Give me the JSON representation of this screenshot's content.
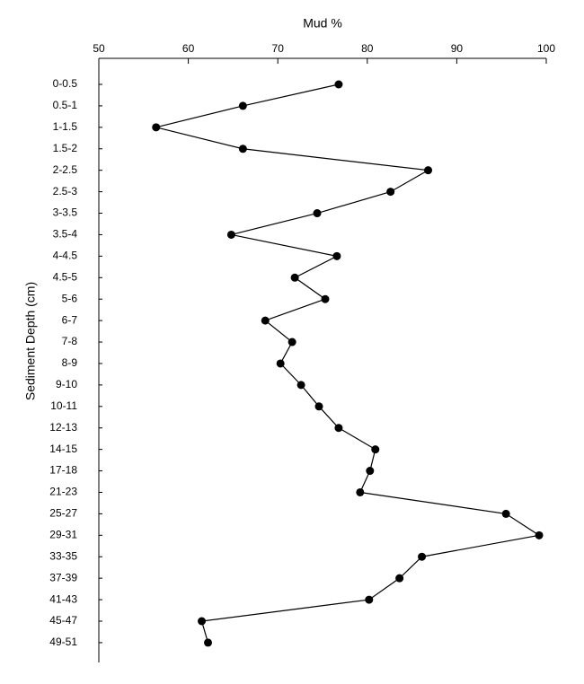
{
  "chart_data": {
    "type": "line",
    "x_label": "Mud %",
    "y_label": "Sediment Depth (cm)",
    "categories": [
      "0-0.5",
      "0.5-1",
      "1-1.5",
      "1.5-2",
      "2-2.5",
      "2.5-3",
      "3-3.5",
      "3.5-4",
      "4-4.5",
      "4.5-5",
      "5-6",
      "6-7",
      "7-8",
      "8-9",
      "9-10",
      "10-11",
      "12-13",
      "14-15",
      "17-18",
      "21-23",
      "25-27",
      "29-31",
      "33-35",
      "37-39",
      "41-43",
      "45-47",
      "49-51"
    ],
    "values": [
      76.8,
      66.1,
      56.4,
      66.1,
      86.8,
      82.6,
      74.4,
      64.8,
      76.6,
      71.9,
      75.3,
      68.6,
      71.6,
      70.3,
      72.6,
      74.6,
      76.8,
      80.9,
      80.3,
      79.2,
      95.5,
      99.2,
      86.1,
      83.6,
      80.2,
      61.5,
      62.2
    ],
    "color": "#000000",
    "xlim": [
      50,
      100
    ],
    "xticks": [
      50,
      60,
      70,
      80,
      90,
      100
    ]
  }
}
